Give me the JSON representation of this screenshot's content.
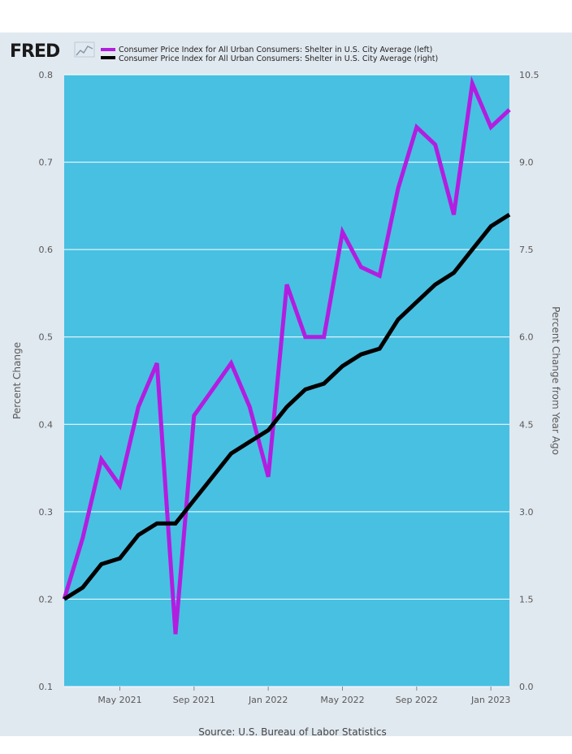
{
  "logo": {
    "text": "FRED"
  },
  "source": "Source: U.S. Bureau of Labor Statistics",
  "chart_data": {
    "type": "line",
    "title": "",
    "x": [
      "2021-02",
      "2021-03",
      "2021-04",
      "2021-05",
      "2021-06",
      "2021-07",
      "2021-08",
      "2021-09",
      "2021-10",
      "2021-11",
      "2021-12",
      "2022-01",
      "2022-02",
      "2022-03",
      "2022-04",
      "2022-05",
      "2022-06",
      "2022-07",
      "2022-08",
      "2022-09",
      "2022-10",
      "2022-11",
      "2022-12",
      "2023-01",
      "2023-02"
    ],
    "x_tick_labels": [
      {
        "date": "2021-05",
        "label": "May 2021"
      },
      {
        "date": "2021-09",
        "label": "Sep 2021"
      },
      {
        "date": "2022-01",
        "label": "Jan 2022"
      },
      {
        "date": "2022-05",
        "label": "May 2022"
      },
      {
        "date": "2022-09",
        "label": "Sep 2022"
      },
      {
        "date": "2023-01",
        "label": "Jan 2023"
      }
    ],
    "ylabel_left": "Percent Change",
    "ylabel_right": "Percent Change from Year Ago",
    "ylim_left": [
      0.1,
      0.8
    ],
    "ylim_right": [
      0.0,
      10.5
    ],
    "yticks_left": [
      "0.1",
      "0.2",
      "0.3",
      "0.4",
      "0.5",
      "0.6",
      "0.7",
      "0.8"
    ],
    "yticks_right": [
      "0.0",
      "1.5",
      "3.0",
      "4.5",
      "6.0",
      "7.5",
      "9.0",
      "10.5"
    ],
    "grid": true,
    "legend_position": "top",
    "plot_background": "#48c0e2",
    "series": [
      {
        "name": "Consumer Price Index for All Urban Consumers: Shelter in U.S. City Average (left)",
        "axis": "left",
        "color": "#b21ee0",
        "values": [
          0.2,
          0.27,
          0.36,
          0.33,
          0.42,
          0.47,
          0.16,
          0.41,
          0.44,
          0.47,
          0.42,
          0.34,
          0.56,
          0.5,
          0.5,
          0.62,
          0.58,
          0.57,
          0.67,
          0.74,
          0.72,
          0.64,
          0.79,
          0.74,
          0.76
        ]
      },
      {
        "name": "Consumer Price Index for All Urban Consumers: Shelter in U.S. City Average (right)",
        "axis": "right",
        "color": "#000000",
        "values": [
          1.5,
          1.7,
          2.1,
          2.2,
          2.6,
          2.8,
          2.8,
          3.2,
          3.6,
          4.0,
          4.2,
          4.4,
          4.8,
          5.1,
          5.2,
          5.5,
          5.7,
          5.8,
          6.3,
          6.6,
          6.9,
          7.1,
          7.5,
          7.9,
          8.1
        ]
      }
    ]
  }
}
